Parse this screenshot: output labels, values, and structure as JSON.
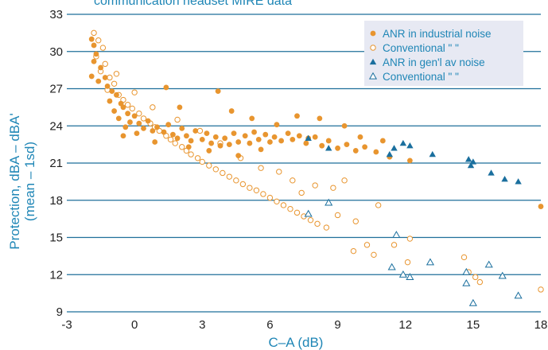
{
  "colors": {
    "orange": "#e8952f",
    "blue": "#1a6f9e",
    "text_blue": "#1f86b6",
    "grid": "#1f6f9a",
    "legend_bg": "#e7e9f3"
  },
  "chart_data": {
    "type": "scatter",
    "title": "communication headset MIRE data",
    "xlabel": "C–A (dB)",
    "ylabel_line1": "Protection, dBA – dBA'",
    "ylabel_line2": "(mean – 1sd)",
    "xlim": [
      -3,
      18
    ],
    "ylim": [
      8.5,
      33
    ],
    "x_ticks": [
      -3,
      0,
      3,
      6,
      9,
      12,
      15,
      18
    ],
    "y_ticks": [
      9,
      12,
      15,
      18,
      21,
      24,
      27,
      30,
      33
    ],
    "grid": "horizontal",
    "legend_position": "top-right",
    "series": [
      {
        "name": "ANR in industrial noise",
        "marker": "filled-circle",
        "points": [
          [
            -1.9,
            31.0
          ],
          [
            -1.8,
            30.5
          ],
          [
            -1.7,
            29.8
          ],
          [
            -1.8,
            29.2
          ],
          [
            -1.5,
            28.7
          ],
          [
            -1.9,
            28.0
          ],
          [
            -1.6,
            27.6
          ],
          [
            -1.3,
            27.9
          ],
          [
            -1.2,
            27.2
          ],
          [
            -1.0,
            26.8
          ],
          [
            -0.8,
            26.5
          ],
          [
            -1.1,
            26.0
          ],
          [
            -0.6,
            25.8
          ],
          [
            -0.9,
            25.2
          ],
          [
            -0.5,
            25.5
          ],
          [
            -0.3,
            25.0
          ],
          [
            -0.7,
            24.6
          ],
          [
            -0.2,
            24.3
          ],
          [
            0.0,
            24.8
          ],
          [
            0.2,
            24.2
          ],
          [
            -0.4,
            23.9
          ],
          [
            0.4,
            23.8
          ],
          [
            0.6,
            24.4
          ],
          [
            0.8,
            23.6
          ],
          [
            1.0,
            23.9
          ],
          [
            0.1,
            23.4
          ],
          [
            1.3,
            23.5
          ],
          [
            1.5,
            24.1
          ],
          [
            1.7,
            23.3
          ],
          [
            1.9,
            23.0
          ],
          [
            2.1,
            23.8
          ],
          [
            2.3,
            23.2
          ],
          [
            2.5,
            22.8
          ],
          [
            2.7,
            23.6
          ],
          [
            3.0,
            22.9
          ],
          [
            3.2,
            23.4
          ],
          [
            3.4,
            22.6
          ],
          [
            3.6,
            23.1
          ],
          [
            3.8,
            22.4
          ],
          [
            4.0,
            23.0
          ],
          [
            4.2,
            22.5
          ],
          [
            4.4,
            23.4
          ],
          [
            4.6,
            22.7
          ],
          [
            4.9,
            23.2
          ],
          [
            5.1,
            22.6
          ],
          [
            5.3,
            23.5
          ],
          [
            5.5,
            22.9
          ],
          [
            5.8,
            23.3
          ],
          [
            6.0,
            22.7
          ],
          [
            6.2,
            23.1
          ],
          [
            6.5,
            22.8
          ],
          [
            6.8,
            23.4
          ],
          [
            7.0,
            22.9
          ],
          [
            7.3,
            23.2
          ],
          [
            7.6,
            22.6
          ],
          [
            8.0,
            23.1
          ],
          [
            8.3,
            22.4
          ],
          [
            8.6,
            22.8
          ],
          [
            9.0,
            22.2
          ],
          [
            9.4,
            22.5
          ],
          [
            9.8,
            22.0
          ],
          [
            10.2,
            22.3
          ],
          [
            10.7,
            21.9
          ],
          [
            11.3,
            21.5
          ],
          [
            12.2,
            21.2
          ],
          [
            1.4,
            27.1
          ],
          [
            3.7,
            26.8
          ],
          [
            2.0,
            25.5
          ],
          [
            4.3,
            25.2
          ],
          [
            5.2,
            24.6
          ],
          [
            6.3,
            24.1
          ],
          [
            7.2,
            24.8
          ],
          [
            8.2,
            24.6
          ],
          [
            9.3,
            24.0
          ],
          [
            -0.5,
            23.2
          ],
          [
            0.9,
            22.7
          ],
          [
            2.4,
            22.3
          ],
          [
            3.3,
            22.0
          ],
          [
            4.6,
            21.6
          ],
          [
            5.6,
            22.1
          ],
          [
            7.7,
            23.0
          ],
          [
            10.0,
            23.1
          ],
          [
            11.0,
            22.8
          ],
          [
            18.0,
            17.5
          ]
        ]
      },
      {
        "name": "Conventional \"      \"",
        "marker": "open-circle",
        "points": [
          [
            -1.8,
            31.5
          ],
          [
            -1.6,
            30.9
          ],
          [
            -1.4,
            30.3
          ],
          [
            -1.7,
            29.6
          ],
          [
            -1.3,
            29.0
          ],
          [
            -1.5,
            28.4
          ],
          [
            -1.1,
            27.9
          ],
          [
            -0.9,
            27.4
          ],
          [
            -1.2,
            26.9
          ],
          [
            -0.7,
            26.5
          ],
          [
            -0.5,
            26.1
          ],
          [
            -0.3,
            25.7
          ],
          [
            -0.1,
            25.4
          ],
          [
            0.2,
            25.0
          ],
          [
            0.4,
            24.6
          ],
          [
            0.7,
            24.2
          ],
          [
            0.9,
            23.9
          ],
          [
            1.1,
            23.6
          ],
          [
            1.4,
            23.2
          ],
          [
            1.6,
            22.9
          ],
          [
            1.8,
            22.6
          ],
          [
            2.1,
            22.3
          ],
          [
            2.3,
            22.0
          ],
          [
            2.5,
            21.7
          ],
          [
            2.8,
            21.4
          ],
          [
            3.0,
            21.1
          ],
          [
            3.3,
            20.8
          ],
          [
            3.6,
            20.5
          ],
          [
            3.9,
            20.2
          ],
          [
            4.2,
            19.9
          ],
          [
            4.5,
            19.6
          ],
          [
            4.8,
            19.3
          ],
          [
            5.1,
            19.0
          ],
          [
            5.4,
            18.8
          ],
          [
            5.7,
            18.5
          ],
          [
            6.0,
            18.2
          ],
          [
            6.3,
            17.9
          ],
          [
            6.6,
            17.6
          ],
          [
            6.9,
            17.3
          ],
          [
            7.2,
            17.0
          ],
          [
            7.5,
            16.7
          ],
          [
            7.8,
            16.4
          ],
          [
            8.1,
            16.1
          ],
          [
            8.5,
            15.8
          ],
          [
            -0.8,
            28.2
          ],
          [
            0.0,
            26.7
          ],
          [
            0.8,
            25.5
          ],
          [
            1.9,
            24.5
          ],
          [
            2.9,
            23.6
          ],
          [
            3.8,
            22.6
          ],
          [
            4.7,
            21.4
          ],
          [
            5.6,
            20.6
          ],
          [
            6.4,
            20.3
          ],
          [
            7.0,
            19.6
          ],
          [
            7.4,
            18.6
          ],
          [
            8.0,
            19.2
          ],
          [
            8.8,
            19.0
          ],
          [
            9.3,
            19.6
          ],
          [
            9.0,
            16.8
          ],
          [
            9.8,
            16.3
          ],
          [
            10.8,
            17.6
          ],
          [
            9.7,
            13.9
          ],
          [
            10.3,
            14.4
          ],
          [
            10.6,
            13.6
          ],
          [
            11.5,
            14.4
          ],
          [
            12.2,
            14.9
          ],
          [
            12.1,
            13.0
          ],
          [
            14.6,
            13.4
          ],
          [
            14.8,
            12.2
          ],
          [
            15.1,
            11.8
          ],
          [
            15.3,
            11.4
          ],
          [
            18.0,
            10.8
          ]
        ]
      },
      {
        "name": "ANR in gen'l av noise",
        "marker": "filled-triangle",
        "points": [
          [
            7.7,
            23.0
          ],
          [
            8.6,
            22.2
          ],
          [
            11.3,
            21.7
          ],
          [
            11.5,
            22.2
          ],
          [
            11.9,
            22.6
          ],
          [
            12.2,
            22.4
          ],
          [
            13.2,
            21.7
          ],
          [
            14.8,
            21.3
          ],
          [
            15.0,
            21.1
          ],
          [
            14.9,
            20.8
          ],
          [
            15.8,
            20.2
          ],
          [
            16.4,
            19.7
          ],
          [
            17.0,
            19.5
          ]
        ]
      },
      {
        "name": "Conventional \"      \"",
        "marker": "open-triangle",
        "points": [
          [
            7.7,
            16.9
          ],
          [
            8.6,
            17.8
          ],
          [
            11.6,
            15.2
          ],
          [
            11.4,
            12.6
          ],
          [
            11.9,
            12.0
          ],
          [
            12.2,
            11.8
          ],
          [
            13.1,
            13.0
          ],
          [
            14.7,
            12.2
          ],
          [
            14.7,
            11.3
          ],
          [
            15.0,
            9.7
          ],
          [
            15.7,
            12.8
          ],
          [
            16.3,
            11.9
          ],
          [
            17.0,
            10.3
          ]
        ]
      }
    ]
  }
}
